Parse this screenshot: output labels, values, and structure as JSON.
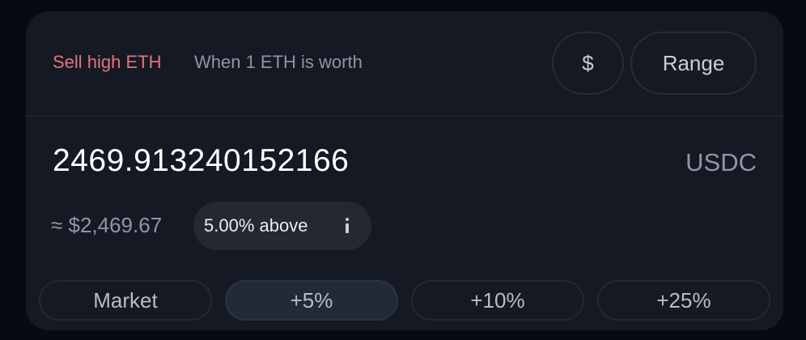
{
  "header": {
    "sell_label": "Sell high ETH",
    "worth_label": "When 1 ETH is worth",
    "dollar_button": "$",
    "range_button": "Range"
  },
  "price": {
    "value": "2469.913240152166",
    "quote_token": "USDC",
    "usd_approx": "≈ $2,469.67",
    "above_label": "5.00% above"
  },
  "presets": [
    {
      "label": "Market",
      "selected": false
    },
    {
      "label": "+5%",
      "selected": true
    },
    {
      "label": "+10%",
      "selected": false
    },
    {
      "label": "+25%",
      "selected": false
    }
  ],
  "colors": {
    "accent_sell": "#e8717f",
    "card_bg": "#141923",
    "page_bg": "#070a14"
  },
  "icons": {
    "info": "info-icon"
  }
}
